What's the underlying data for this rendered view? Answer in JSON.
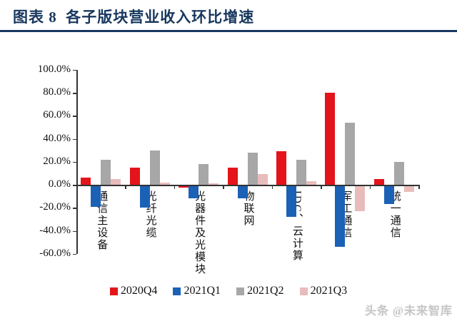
{
  "title": "图表 8  各子版块营业收入环比增速",
  "watermark": "头条 @未来智库",
  "colors": {
    "title": "#17375e",
    "title_rule": "#17375e",
    "axis": "#333333",
    "watermark": "#c6c6c6"
  },
  "chart_data": {
    "type": "bar",
    "title": "各子版块营业收入环比增速",
    "categories": [
      "通信主设备",
      "光纤光缆",
      "光器件及光模块",
      "物联网",
      "IDC、云计算",
      "军工通信",
      "统一通信"
    ],
    "series": [
      {
        "name": "2020Q4",
        "color": "#e3141a",
        "values": [
          6,
          15,
          -2.5,
          15,
          29,
          80,
          5
        ]
      },
      {
        "name": "2021Q1",
        "color": "#1b61b6",
        "values": [
          -19,
          -20,
          -12,
          -12,
          -28,
          -54,
          -17
        ]
      },
      {
        "name": "2021Q2",
        "color": "#a7a7a7",
        "values": [
          22,
          30,
          18,
          28,
          22,
          54,
          20
        ]
      },
      {
        "name": "2021Q3",
        "color": "#e8bcbb",
        "values": [
          5,
          2,
          1,
          9,
          3,
          -23,
          -6
        ]
      }
    ],
    "ylabel": "",
    "xlabel": "",
    "ylim": [
      -60,
      100
    ],
    "ytick_step": 20,
    "ytick_labels": [
      "100.0%",
      "80.0%",
      "60.0%",
      "40.0%",
      "20.0%",
      "0.0%",
      "-20.0%",
      "-40.0%",
      "-60.0%"
    ],
    "legend_position": "bottom",
    "grid": false
  }
}
